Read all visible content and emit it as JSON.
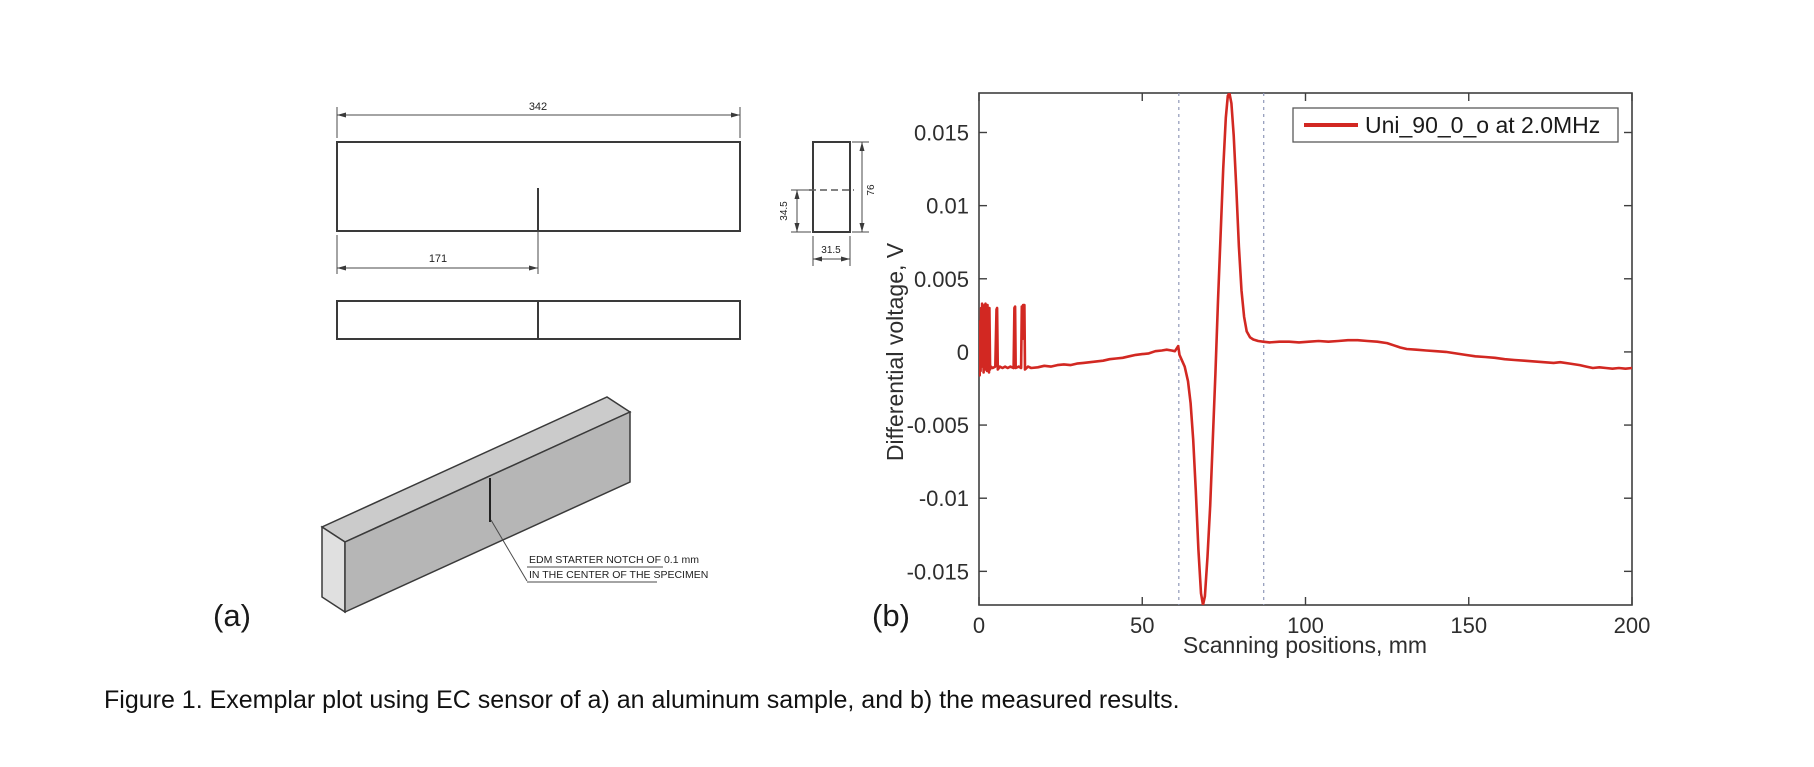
{
  "figure": {
    "caption": "Figure 1. Exemplar plot using EC sensor of a) an aluminum sample, and b) the measured results.",
    "panel_a_label": "(a)",
    "panel_b_label": "(b)"
  },
  "drawing": {
    "dim_length": "342",
    "dim_notch_position": "171",
    "dim_notch_depth": "34.5",
    "dim_height": "76",
    "dim_width": "31.5",
    "note_line1": "EDM STARTER NOTCH OF 0.1 mm",
    "note_line2": "IN THE CENTER OF THE SPECIMEN"
  },
  "chart_data": {
    "type": "line",
    "title": "",
    "xlabel": "Scanning positions, mm",
    "ylabel": "Differential voltage, V",
    "xlim": [
      0,
      200
    ],
    "ylim": [
      -0.0173,
      0.0177
    ],
    "xticks": [
      0,
      50,
      100,
      150,
      200
    ],
    "yticks": [
      0.015,
      0.01,
      0.005,
      0,
      -0.005,
      -0.01,
      -0.015
    ],
    "grid": false,
    "legend": {
      "position": "top-right",
      "entries": [
        {
          "label": "Uni_90_0_o at 2.0MHz",
          "color": "#d22822"
        }
      ]
    },
    "annotations": {
      "dashed_vlines_x": [
        61.2,
        87.2
      ],
      "dash_color": "#8f97b8"
    },
    "series": [
      {
        "name": "Uni_90_0_o at 2.0MHz",
        "color": "#d22822",
        "points": [
          [
            0,
            0.0012
          ],
          [
            0.2,
            -0.0016
          ],
          [
            0.35,
            0.0021
          ],
          [
            0.5,
            -0.0013
          ],
          [
            0.65,
            0.003
          ],
          [
            0.8,
            -0.001
          ],
          [
            0.95,
            0.0033
          ],
          [
            1.1,
            0.0008
          ],
          [
            1.25,
            0.0031
          ],
          [
            1.4,
            -0.0014
          ],
          [
            1.55,
            0.0029
          ],
          [
            1.7,
            0.0032
          ],
          [
            1.85,
            -0.0012
          ],
          [
            2.0,
            0.0033
          ],
          [
            2.15,
            0.001
          ],
          [
            2.3,
            0.003
          ],
          [
            2.45,
            -0.0013
          ],
          [
            2.6,
            0.0032
          ],
          [
            2.75,
            -0.0009
          ],
          [
            2.9,
            0.0028
          ],
          [
            3.05,
            -0.0014
          ],
          [
            3.2,
            0.003
          ],
          [
            3.4,
            -0.0012
          ],
          [
            3.6,
            -0.001
          ],
          [
            4.2,
            -0.0011
          ],
          [
            5.0,
            -0.001
          ],
          [
            5.35,
            0.0029
          ],
          [
            5.55,
            0.003
          ],
          [
            5.75,
            -0.0012
          ],
          [
            6.4,
            -0.001
          ],
          [
            7.2,
            -0.0011
          ],
          [
            8.0,
            -0.001
          ],
          [
            8.8,
            -0.0011
          ],
          [
            9.6,
            -0.001
          ],
          [
            10.6,
            -0.0011
          ],
          [
            10.85,
            0.003
          ],
          [
            11.05,
            0.0031
          ],
          [
            11.25,
            -0.0011
          ],
          [
            12.2,
            -0.001
          ],
          [
            12.9,
            -0.0011
          ],
          [
            13.1,
            0.0031
          ],
          [
            13.3,
            0.0009
          ],
          [
            13.5,
            0.0032
          ],
          [
            13.9,
            0.0032
          ],
          [
            14.1,
            -0.0012
          ],
          [
            15,
            -0.001
          ],
          [
            16,
            -0.0011
          ],
          [
            18,
            -0.00105
          ],
          [
            20,
            -0.00095
          ],
          [
            22,
            -0.001
          ],
          [
            24,
            -0.0009
          ],
          [
            26,
            -0.00085
          ],
          [
            28,
            -0.0009
          ],
          [
            30,
            -0.0008
          ],
          [
            32,
            -0.00075
          ],
          [
            34,
            -0.0007
          ],
          [
            36,
            -0.00065
          ],
          [
            38,
            -0.0006
          ],
          [
            40,
            -0.0005
          ],
          [
            42,
            -0.00045
          ],
          [
            44,
            -0.0004
          ],
          [
            46,
            -0.0003
          ],
          [
            48,
            -0.0002
          ],
          [
            50,
            -0.00015
          ],
          [
            52,
            -0.0001
          ],
          [
            54,
            5e-05
          ],
          [
            56,
            0.0001
          ],
          [
            57.5,
            0.00015
          ],
          [
            59,
            0.0001
          ],
          [
            60,
            5e-05
          ],
          [
            61,
            0.0004
          ],
          [
            61.4,
            -0.0002
          ],
          [
            62,
            -0.0005
          ],
          [
            63,
            -0.001
          ],
          [
            64,
            -0.002
          ],
          [
            64.8,
            -0.0035
          ],
          [
            65.6,
            -0.006
          ],
          [
            66.4,
            -0.0095
          ],
          [
            67.2,
            -0.0135
          ],
          [
            68,
            -0.0165
          ],
          [
            68.6,
            -0.0173
          ],
          [
            69.2,
            -0.0167
          ],
          [
            70,
            -0.014
          ],
          [
            70.8,
            -0.0105
          ],
          [
            71.6,
            -0.006
          ],
          [
            72.4,
            -0.0015
          ],
          [
            73.2,
            0.0035
          ],
          [
            74,
            0.008
          ],
          [
            74.8,
            0.0125
          ],
          [
            75.6,
            0.016
          ],
          [
            76.2,
            0.0175
          ],
          [
            76.7,
            0.0177
          ],
          [
            77.3,
            0.017
          ],
          [
            78,
            0.0148
          ],
          [
            78.8,
            0.0112
          ],
          [
            79.6,
            0.0072
          ],
          [
            80.4,
            0.0042
          ],
          [
            81.2,
            0.0024
          ],
          [
            82,
            0.0014
          ],
          [
            83,
            0.001
          ],
          [
            84,
            0.00085
          ],
          [
            85.5,
            0.00075
          ],
          [
            87,
            0.0007
          ],
          [
            89,
            0.00065
          ],
          [
            92,
            0.0007
          ],
          [
            95,
            0.0007
          ],
          [
            98,
            0.00065
          ],
          [
            101,
            0.0007
          ],
          [
            104,
            0.00075
          ],
          [
            107,
            0.0007
          ],
          [
            110,
            0.00075
          ],
          [
            113,
            0.0008
          ],
          [
            116,
            0.0008
          ],
          [
            119,
            0.00075
          ],
          [
            122,
            0.0007
          ],
          [
            125,
            0.0006
          ],
          [
            127,
            0.00045
          ],
          [
            129,
            0.0003
          ],
          [
            131,
            0.0002
          ],
          [
            134,
            0.00015
          ],
          [
            137,
            0.0001
          ],
          [
            140,
            5e-05
          ],
          [
            143,
            0
          ],
          [
            146,
            -0.0001
          ],
          [
            149,
            -0.0002
          ],
          [
            152,
            -0.0003
          ],
          [
            155,
            -0.00035
          ],
          [
            158,
            -0.0004
          ],
          [
            161,
            -0.0005
          ],
          [
            164,
            -0.00055
          ],
          [
            167,
            -0.0006
          ],
          [
            170,
            -0.00065
          ],
          [
            173,
            -0.0007
          ],
          [
            176,
            -0.00075
          ],
          [
            178,
            -0.0007
          ],
          [
            181,
            -0.0008
          ],
          [
            184,
            -0.0009
          ],
          [
            186,
            -0.001
          ],
          [
            188,
            -0.0011
          ],
          [
            190,
            -0.00105
          ],
          [
            192,
            -0.0011
          ],
          [
            194,
            -0.00115
          ],
          [
            196,
            -0.0011
          ],
          [
            198,
            -0.00115
          ],
          [
            200,
            -0.0011
          ]
        ]
      }
    ]
  },
  "colors": {
    "accent_red": "#d22822",
    "axis": "#3f3f3f",
    "drawing_line": "#3a3a3a",
    "dashed_guide": "#8f97b8"
  }
}
